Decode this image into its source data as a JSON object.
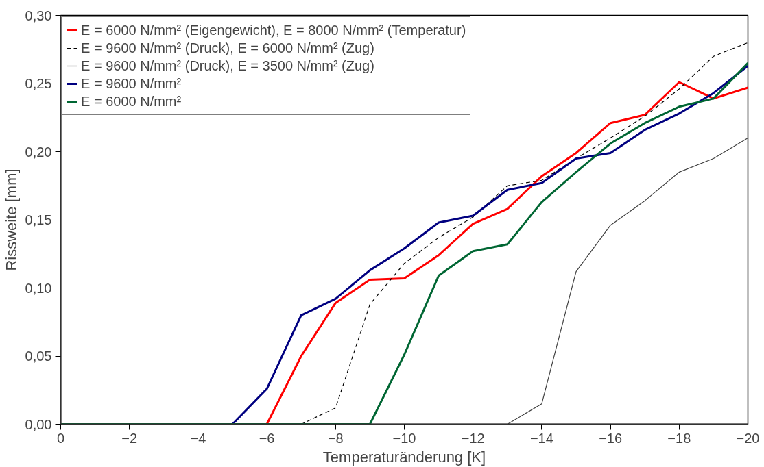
{
  "chart_data": {
    "type": "line",
    "xlabel": "Temperaturänderung [K]",
    "ylabel": "Rissweite [mm]",
    "x": [
      0,
      -1,
      -2,
      -3,
      -4,
      -5,
      -6,
      -7,
      -8,
      -9,
      -10,
      -11,
      -12,
      -13,
      -14,
      -15,
      -16,
      -17,
      -18,
      -19,
      -20
    ],
    "xlim": [
      0,
      -20
    ],
    "xticks": [
      0,
      -2,
      -4,
      -6,
      -8,
      -10,
      -12,
      -14,
      -16,
      -18,
      -20
    ],
    "ylim": [
      0,
      0.3
    ],
    "yticks": [
      {
        "value": 0,
        "label": "0,00"
      },
      {
        "value": 0.05,
        "label": "0,05"
      },
      {
        "value": 0.1,
        "label": "0,10"
      },
      {
        "value": 0.15,
        "label": "0,15"
      },
      {
        "value": 0.2,
        "label": "0,20"
      },
      {
        "value": 0.25,
        "label": "0,25"
      },
      {
        "value": 0.3,
        "label": "0,30"
      }
    ],
    "grid": false,
    "legend": "top left",
    "marker": "none",
    "series": [
      {
        "name": "E = 6000 N/mm² (Eigengewicht), E = 8000 N/mm² (Temperatur)",
        "color": "#ff0000",
        "line_style": "solid",
        "values": [
          null,
          null,
          null,
          null,
          null,
          null,
          0,
          0.05,
          0.089,
          0.106,
          0.107,
          0.124,
          0.147,
          0.158,
          0.182,
          0.199,
          0.221,
          0.227,
          0.251,
          0.239,
          0.247
        ]
      },
      {
        "name": "E = 9600 N/mm² (Druck), E = 6000 N/mm² (Zug)",
        "color": "#000000",
        "line_style": "dashed",
        "values": [
          0,
          0,
          0,
          0,
          0,
          0,
          0,
          0,
          0.012,
          0.088,
          0.118,
          0.137,
          0.152,
          0.175,
          0.179,
          0.195,
          0.21,
          0.226,
          0.246,
          0.27,
          0.28
        ]
      },
      {
        "name": "E = 9600 N/mm² (Druck), E = 3500 N/mm² (Zug)",
        "color": "#404040",
        "line_style": "solid",
        "values": [
          null,
          null,
          null,
          null,
          null,
          null,
          null,
          null,
          null,
          null,
          null,
          null,
          null,
          0,
          0.015,
          0.112,
          0.146,
          0.164,
          0.185,
          0.195,
          0.21
        ]
      },
      {
        "name": "E = 9600 N/mm²",
        "color": "#000080",
        "line_style": "solid",
        "values": [
          null,
          null,
          null,
          null,
          null,
          0,
          0.026,
          0.08,
          0.092,
          0.113,
          0.129,
          0.148,
          0.153,
          0.172,
          0.177,
          0.195,
          0.199,
          0.216,
          0.228,
          0.243,
          0.263
        ]
      },
      {
        "name": "E = 6000 N/mm²",
        "color": "#006633",
        "line_style": "solid",
        "values": [
          0,
          0,
          0,
          0,
          0,
          0,
          0,
          0,
          0,
          0,
          0.051,
          0.109,
          0.127,
          0.132,
          0.163,
          0.185,
          0.206,
          0.221,
          0.233,
          0.239,
          0.265
        ]
      }
    ]
  }
}
